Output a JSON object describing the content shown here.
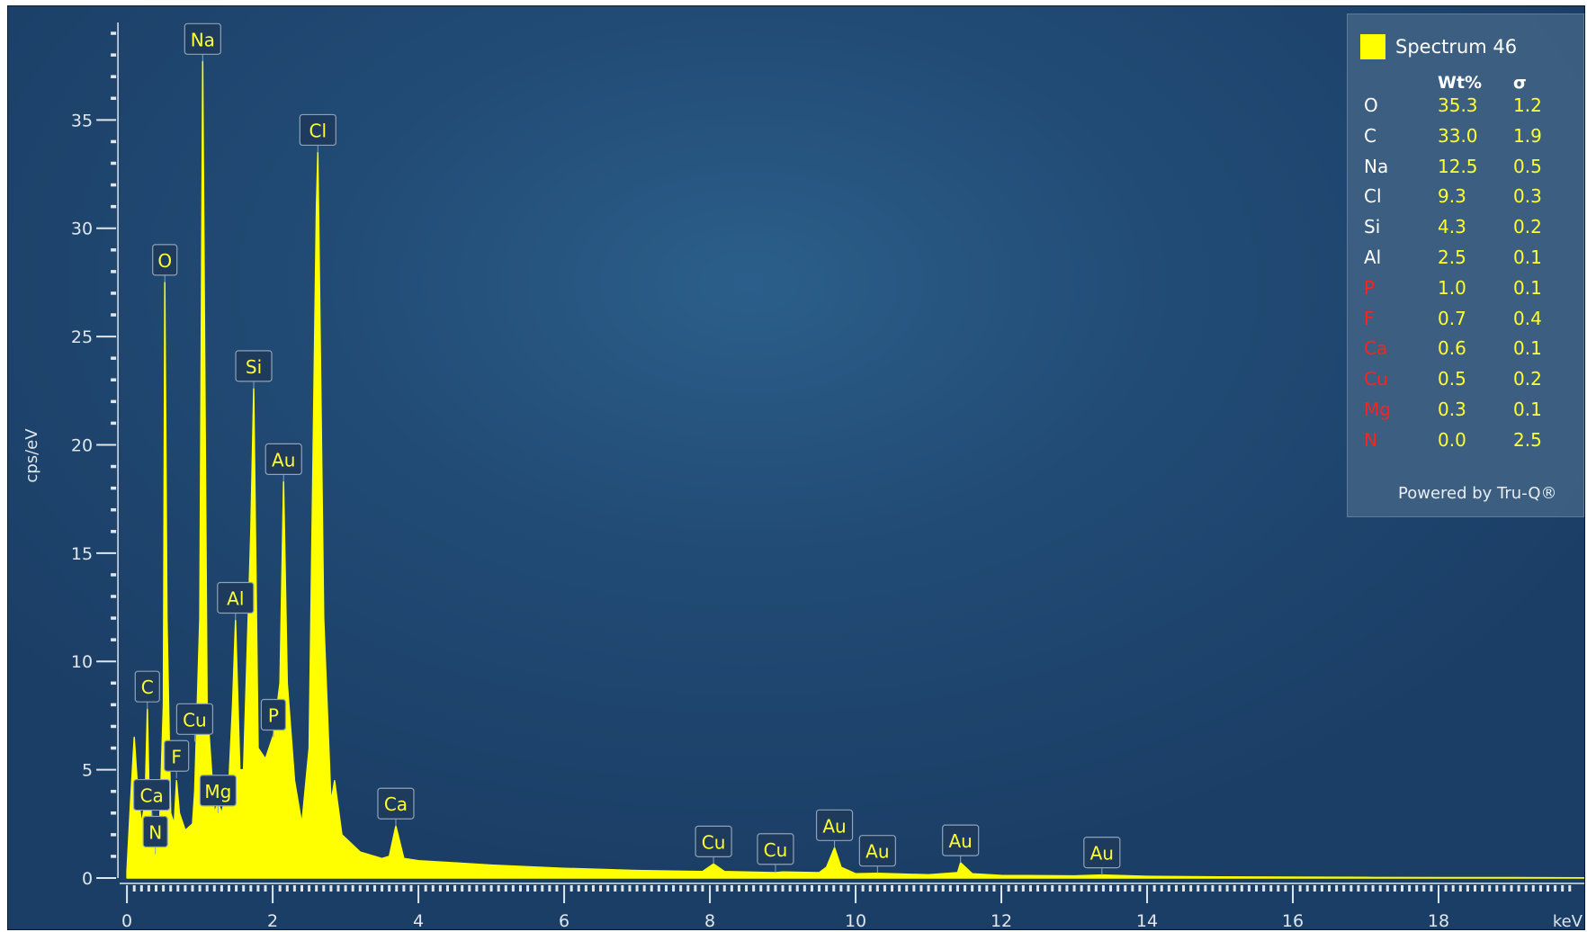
{
  "chart_data": {
    "type": "area",
    "xlabel": "keV",
    "ylabel": "cps/eV",
    "xlim": [
      -0.1,
      20.0
    ],
    "ylim": [
      0,
      39.5
    ],
    "x_ticks": [
      0,
      2,
      4,
      6,
      8,
      10,
      12,
      14,
      16,
      18
    ],
    "y_ticks": [
      0,
      5,
      10,
      15,
      20,
      25,
      30,
      35
    ],
    "grid": false,
    "background_color": "#214b75",
    "series_color": "#ffff00",
    "series": [
      {
        "name": "Spectrum 46",
        "x": [
          0.0,
          0.05,
          0.1,
          0.15,
          0.2,
          0.25,
          0.28,
          0.3,
          0.35,
          0.4,
          0.45,
          0.5,
          0.52,
          0.55,
          0.6,
          0.65,
          0.68,
          0.72,
          0.8,
          0.9,
          0.93,
          1.0,
          1.04,
          1.1,
          1.2,
          1.25,
          1.3,
          1.4,
          1.45,
          1.49,
          1.55,
          1.6,
          1.7,
          1.74,
          1.8,
          1.9,
          2.01,
          2.1,
          2.15,
          2.2,
          2.3,
          2.4,
          2.5,
          2.6,
          2.62,
          2.7,
          2.8,
          2.85,
          2.95,
          3.2,
          3.5,
          3.6,
          3.69,
          3.8,
          4.0,
          4.5,
          5.0,
          6.0,
          7.0,
          7.9,
          8.05,
          8.2,
          8.9,
          9.0,
          9.5,
          9.6,
          9.71,
          9.8,
          10.0,
          10.3,
          11.0,
          11.4,
          11.44,
          11.6,
          12.0,
          13.0,
          13.38,
          14.0,
          15.0,
          16.0,
          17.0,
          18.0,
          19.0,
          20.0
        ],
        "y": [
          0.3,
          3.5,
          6.5,
          4.0,
          2.5,
          3.5,
          7.8,
          4.5,
          2.5,
          1.5,
          2.5,
          8.0,
          27.5,
          12.0,
          3.0,
          2.5,
          4.5,
          3.0,
          2.2,
          2.5,
          4.0,
          12.0,
          37.7,
          8.0,
          3.0,
          3.5,
          3.0,
          4.5,
          8.0,
          11.9,
          5.0,
          5.0,
          16.0,
          22.6,
          6.0,
          5.5,
          6.6,
          9.0,
          18.3,
          9.0,
          4.5,
          2.5,
          6.0,
          31.0,
          33.5,
          12.0,
          3.5,
          4.5,
          2.0,
          1.2,
          0.9,
          1.0,
          2.4,
          0.9,
          0.8,
          0.7,
          0.6,
          0.45,
          0.35,
          0.3,
          0.65,
          0.3,
          0.25,
          0.28,
          0.25,
          0.5,
          1.4,
          0.5,
          0.2,
          0.22,
          0.15,
          0.25,
          0.7,
          0.2,
          0.12,
          0.1,
          0.14,
          0.08,
          0.05,
          0.04,
          0.03,
          0.02,
          0.02,
          0.01
        ]
      }
    ],
    "peak_labels": [
      {
        "label": "Na",
        "x": 1.04,
        "y": 37.7
      },
      {
        "label": "Cl",
        "x": 2.62,
        "y": 33.5
      },
      {
        "label": "O",
        "x": 0.52,
        "y": 27.5
      },
      {
        "label": "Si",
        "x": 1.74,
        "y": 22.6
      },
      {
        "label": "Au",
        "x": 2.15,
        "y": 18.3
      },
      {
        "label": "Al",
        "x": 1.49,
        "y": 11.9
      },
      {
        "label": "C",
        "x": 0.28,
        "y": 7.8
      },
      {
        "label": "Cu",
        "x": 0.93,
        "y": 6.3
      },
      {
        "label": "P",
        "x": 2.01,
        "y": 6.5
      },
      {
        "label": "F",
        "x": 0.68,
        "y": 4.6
      },
      {
        "label": "Mg",
        "x": 1.25,
        "y": 3.0
      },
      {
        "label": "Ca",
        "x": 0.34,
        "y": 2.8
      },
      {
        "label": "N",
        "x": 0.39,
        "y": 1.1
      },
      {
        "label": "Ca",
        "x": 3.69,
        "y": 2.4
      },
      {
        "label": "Cu",
        "x": 8.05,
        "y": 0.65
      },
      {
        "label": "Cu",
        "x": 8.9,
        "y": 0.3
      },
      {
        "label": "Au",
        "x": 9.71,
        "y": 1.4
      },
      {
        "label": "Au",
        "x": 10.3,
        "y": 0.22
      },
      {
        "label": "Au",
        "x": 11.44,
        "y": 0.7
      },
      {
        "label": "Au",
        "x": 13.38,
        "y": 0.14
      }
    ],
    "legend": {
      "placement": "top-right",
      "series_name": "Spectrum 46",
      "columns": [
        "Wt%",
        "σ"
      ],
      "rows": [
        {
          "element": "O",
          "wt": "35.3",
          "sigma": "1.2",
          "color": "#ffffff"
        },
        {
          "element": "C",
          "wt": "33.0",
          "sigma": "1.9",
          "color": "#ffffff"
        },
        {
          "element": "Na",
          "wt": "12.5",
          "sigma": "0.5",
          "color": "#ffffff"
        },
        {
          "element": "Cl",
          "wt": "9.3",
          "sigma": "0.3",
          "color": "#ffffff"
        },
        {
          "element": "Si",
          "wt": "4.3",
          "sigma": "0.2",
          "color": "#ffffff"
        },
        {
          "element": "Al",
          "wt": "2.5",
          "sigma": "0.1",
          "color": "#ffffff"
        },
        {
          "element": "P",
          "wt": "1.0",
          "sigma": "0.1",
          "color": "#ff2020"
        },
        {
          "element": "F",
          "wt": "0.7",
          "sigma": "0.4",
          "color": "#ff2020"
        },
        {
          "element": "Ca",
          "wt": "0.6",
          "sigma": "0.1",
          "color": "#ff2020"
        },
        {
          "element": "Cu",
          "wt": "0.5",
          "sigma": "0.2",
          "color": "#ff2020"
        },
        {
          "element": "Mg",
          "wt": "0.3",
          "sigma": "0.1",
          "color": "#ff2020"
        },
        {
          "element": "N",
          "wt": "0.0",
          "sigma": "2.5",
          "color": "#ff2020"
        }
      ],
      "footer": "Powered by Tru-Q®"
    }
  }
}
